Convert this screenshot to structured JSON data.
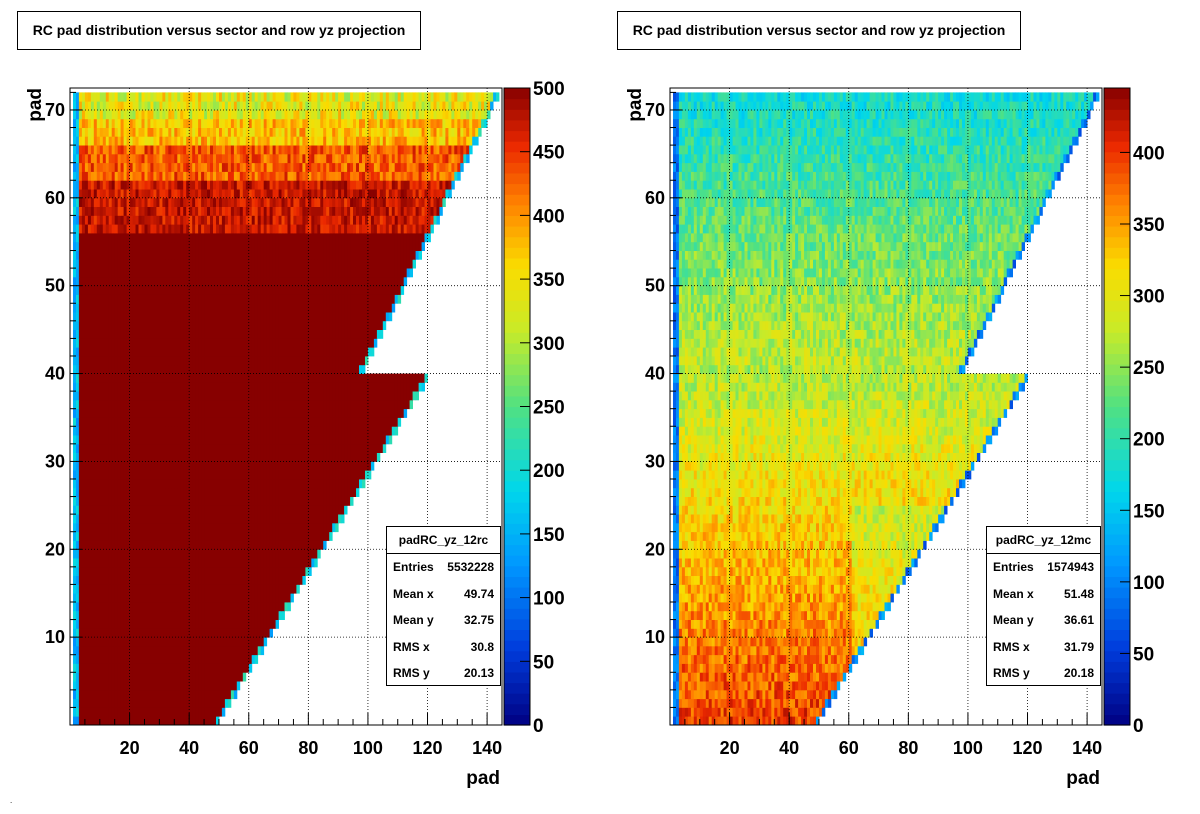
{
  "chart_data": [
    {
      "type": "heatmap",
      "title": "RC pad distribution versus sector and row yz projection",
      "xlabel": "pad",
      "ylabel": "pad",
      "xlim": [
        0,
        145
      ],
      "ylim": [
        0,
        72.5
      ],
      "x_ticks": [
        20,
        40,
        60,
        80,
        100,
        120,
        140
      ],
      "y_ticks": [
        10,
        20,
        30,
        40,
        50,
        60,
        70
      ],
      "colorbar": {
        "min": 0,
        "max": 500,
        "ticks": [
          0,
          50,
          100,
          150,
          200,
          250,
          300,
          350,
          400,
          450,
          500
        ]
      },
      "grid": true,
      "stats": {
        "name": "padRC_yz_12rc",
        "rows": [
          {
            "label": "Entries",
            "value": "5532228"
          },
          {
            "label": "Mean x",
            "value": "49.74"
          },
          {
            "label": "Mean y",
            "value": "32.75"
          },
          {
            "label": "RMS x",
            "value": "30.8"
          },
          {
            "label": "RMS y",
            "value": "20.13"
          }
        ]
      },
      "intensity_profile": {
        "description_rows": [
          {
            "row_max": 57,
            "value": 500
          },
          {
            "row_max": 63,
            "value": 460
          },
          {
            "row_max": 66,
            "value": 420
          },
          {
            "row_max": 69,
            "value": 370
          },
          {
            "row_max": 72.5,
            "value": 320
          }
        ]
      }
    },
    {
      "type": "heatmap",
      "title": "RC pad distribution versus sector and row yz projection",
      "xlabel": "pad",
      "ylabel": "pad",
      "xlim": [
        0,
        145
      ],
      "ylim": [
        0,
        72.5
      ],
      "x_ticks": [
        20,
        40,
        60,
        80,
        100,
        120,
        140
      ],
      "y_ticks": [
        10,
        20,
        30,
        40,
        50,
        60,
        70
      ],
      "colorbar": {
        "min": 0,
        "max": 445,
        "ticks": [
          0,
          50,
          100,
          150,
          200,
          250,
          300,
          350,
          400
        ]
      },
      "grid": true,
      "stats": {
        "name": "padRC_yz_12mc",
        "rows": [
          {
            "label": "Entries",
            "value": "1574943"
          },
          {
            "label": "Mean x",
            "value": "51.48"
          },
          {
            "label": "Mean y",
            "value": "36.61"
          },
          {
            "label": "RMS x",
            "value": "31.79"
          },
          {
            "label": "RMS y",
            "value": "20.18"
          }
        ]
      },
      "intensity_profile": {
        "description_rows": [
          {
            "row": 0,
            "value": 390
          },
          {
            "row": 10,
            "value": 340
          },
          {
            "row": 20,
            "value": 290
          },
          {
            "row": 30,
            "value": 260
          },
          {
            "row": 40,
            "value": 230
          },
          {
            "row": 50,
            "value": 220
          },
          {
            "row": 60,
            "value": 200
          },
          {
            "row": 72.5,
            "value": 170
          }
        ]
      }
    }
  ],
  "footer_mark": "."
}
